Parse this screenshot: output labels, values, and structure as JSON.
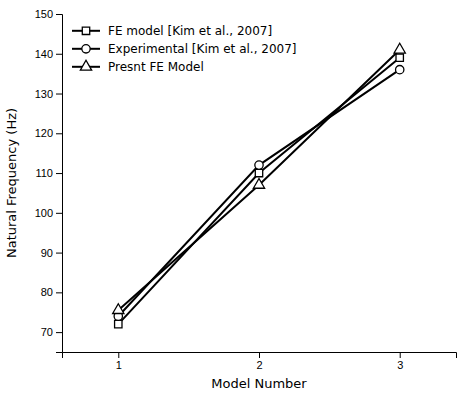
{
  "chart_data": {
    "type": "line",
    "x": [
      1,
      2,
      3
    ],
    "series": [
      {
        "name": "FE model [Kim et al., 2007]",
        "color": "#000000",
        "marker": "square",
        "values": [
          72.0,
          110.0,
          139.0
        ]
      },
      {
        "name": "Experimental [Kim et al., 2007]",
        "color": "#000000",
        "marker": "circle",
        "values": [
          74.0,
          112.0,
          136.0
        ]
      },
      {
        "name": "Presnt FE Model",
        "color": "#000000",
        "marker": "triangle",
        "values": [
          75.5,
          107.0,
          141.0
        ]
      }
    ],
    "xlabel": "Model Number",
    "ylabel": "Natural Frequency (Hz)",
    "xlim": [
      0.6,
      3.4
    ],
    "ylim": [
      65,
      150
    ],
    "xticks": [
      1,
      2,
      3
    ],
    "yticks": [
      70,
      80,
      90,
      100,
      110,
      120,
      130,
      140,
      150
    ],
    "grid": false,
    "legend": "upper left"
  }
}
